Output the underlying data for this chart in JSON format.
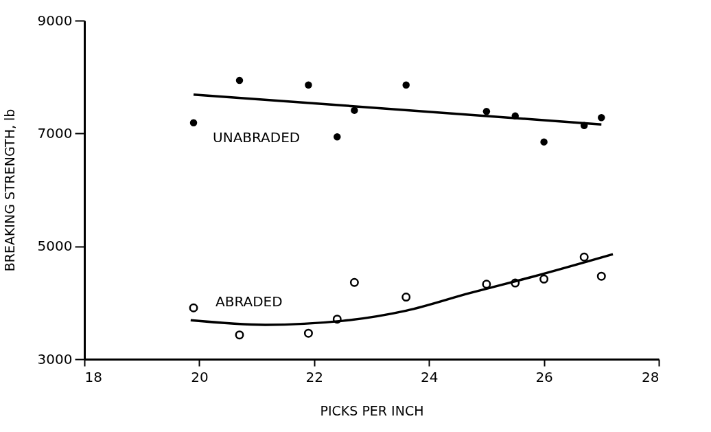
{
  "chart_data": {
    "type": "scatter",
    "xlabel": "PICKS PER INCH",
    "ylabel": "BREAKING STRENGTH, lb",
    "xlim": [
      18,
      28
    ],
    "xticks": [
      18,
      20,
      22,
      24,
      26,
      28
    ],
    "ylim": [
      3000,
      9000
    ],
    "yticks": [
      3000,
      5000,
      7000,
      9000
    ],
    "grid": false,
    "series": [
      {
        "name": "UNABRADED",
        "marker": "circle",
        "color": "#000000",
        "x": [
          19.9,
          20.7,
          21.9,
          22.4,
          22.7,
          23.6,
          25.0,
          25.5,
          26.0,
          26.7,
          27.0
        ],
        "values": [
          7190,
          7940,
          7860,
          6940,
          7410,
          7860,
          7390,
          7310,
          6850,
          7140,
          7280
        ]
      },
      {
        "name": "ABRADED",
        "marker": "circle",
        "color": "#000000",
        "x": [
          19.9,
          20.7,
          21.9,
          22.4,
          22.7,
          23.6,
          25.0,
          25.5,
          26.0,
          26.7,
          27.0
        ],
        "values": [
          3910,
          3430,
          3460,
          3710,
          4360,
          4100,
          4330,
          4350,
          4420,
          4810,
          4470
        ]
      },
      {
        "type": "line",
        "marker": "none",
        "color": "#000000",
        "line_style": "solid",
        "x": [
          19.9,
          27.0
        ],
        "values": [
          7690,
          7160
        ]
      },
      {
        "type": "line",
        "marker": "none",
        "color": "#000000",
        "line_style": "solid",
        "x": [
          19.85,
          21.15,
          22.5,
          23.6,
          24.7,
          25.8,
          27.2
        ],
        "values": [
          3690,
          3610,
          3680,
          3860,
          4170,
          4460,
          4860
        ]
      }
    ]
  }
}
